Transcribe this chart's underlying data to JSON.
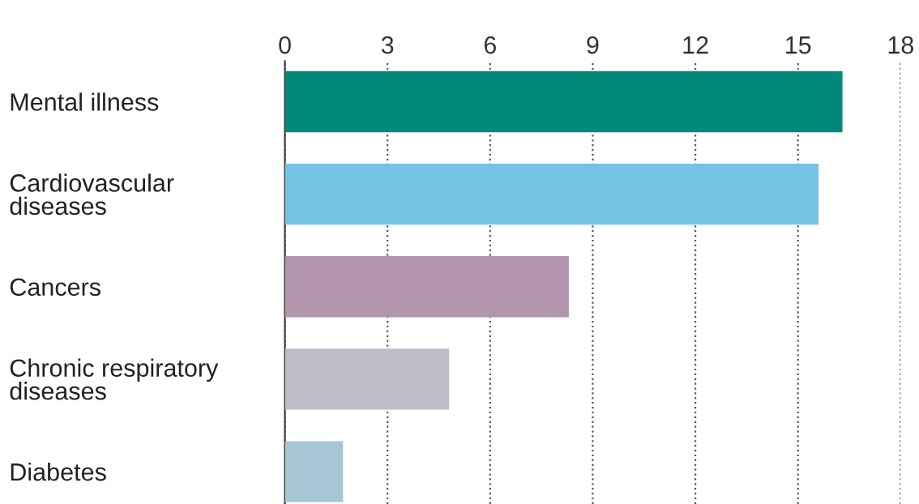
{
  "chart_data": {
    "type": "bar",
    "orientation": "horizontal",
    "categories": [
      "Mental illness",
      "Cardiovascular\ndiseases",
      "Cancers",
      "Chronic respiratory\ndiseases",
      "Diabetes"
    ],
    "values": [
      16.3,
      15.6,
      8.3,
      4.8,
      1.7
    ],
    "colors": [
      "#00897b",
      "#74c3e4",
      "#b095ad",
      "#bdbdc9",
      "#a6c6d4"
    ],
    "xlim": [
      0,
      18
    ],
    "xticks": [
      0,
      3,
      6,
      9,
      12,
      15,
      18
    ],
    "grid": "x",
    "line_style": "dotted"
  }
}
